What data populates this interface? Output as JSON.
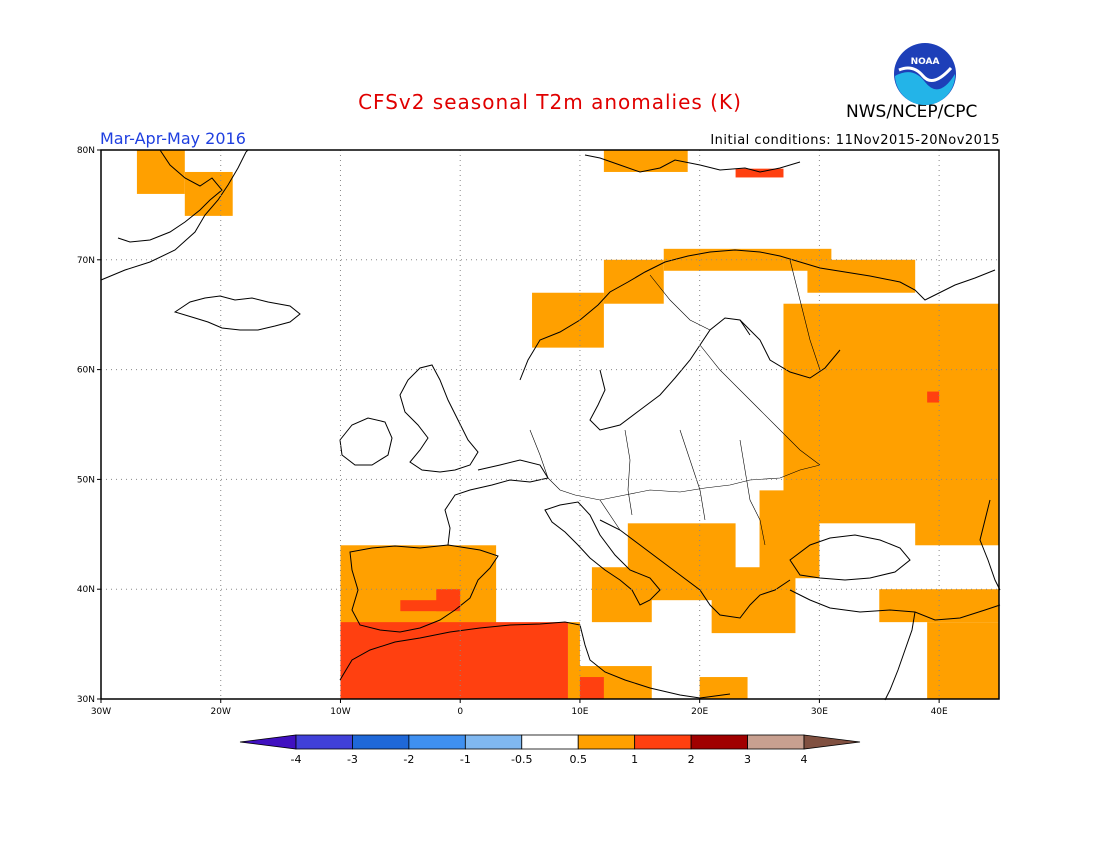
{
  "header": {
    "title": "CFSv2 seasonal T2m anomalies (K)",
    "agency": "NWS/NCEP/CPC",
    "period": "Mar-Apr-May 2016",
    "initial_conditions": "Initial conditions: 11Nov2015-20Nov2015",
    "logo_text": "NOAA"
  },
  "map": {
    "lon_range": [
      -30,
      45
    ],
    "lat_range": [
      30,
      80
    ],
    "lon_ticks": [
      {
        "value": -30,
        "label": "30W"
      },
      {
        "value": -20,
        "label": "20W"
      },
      {
        "value": -10,
        "label": "10W"
      },
      {
        "value": 0,
        "label": "0"
      },
      {
        "value": 10,
        "label": "10E"
      },
      {
        "value": 20,
        "label": "20E"
      },
      {
        "value": 30,
        "label": "30E"
      },
      {
        "value": 40,
        "label": "40E"
      }
    ],
    "lat_ticks": [
      {
        "value": 30,
        "label": "30N"
      },
      {
        "value": 40,
        "label": "40N"
      },
      {
        "value": 50,
        "label": "50N"
      },
      {
        "value": 60,
        "label": "60N"
      },
      {
        "value": 70,
        "label": "70N"
      },
      {
        "value": 80,
        "label": "80N"
      }
    ],
    "grid": true,
    "anomaly_regions": [
      {
        "category": "0.5-1",
        "lon": [
          -27,
          -23
        ],
        "lat": [
          76,
          80
        ]
      },
      {
        "category": "0.5-1",
        "lon": [
          -23,
          -19
        ],
        "lat": [
          74,
          78
        ]
      },
      {
        "category": "0.5-1",
        "lon": [
          12,
          19
        ],
        "lat": [
          78,
          80
        ]
      },
      {
        "category": "1-2",
        "lon": [
          23,
          27
        ],
        "lat": [
          77.5,
          78.3
        ]
      },
      {
        "category": "0.5-1",
        "lon": [
          6,
          12
        ],
        "lat": [
          62,
          67
        ]
      },
      {
        "category": "0.5-1",
        "lon": [
          12,
          17
        ],
        "lat": [
          66,
          70
        ]
      },
      {
        "category": "0.5-1",
        "lon": [
          17,
          31
        ],
        "lat": [
          69,
          71
        ]
      },
      {
        "category": "0.5-1",
        "lon": [
          29,
          38
        ],
        "lat": [
          67,
          70
        ]
      },
      {
        "category": "0.5-1",
        "lon": [
          27,
          45
        ],
        "lat": [
          46,
          66
        ]
      },
      {
        "category": "0.5-1",
        "lon": [
          38,
          45
        ],
        "lat": [
          44,
          50
        ]
      },
      {
        "category": "0.5-1",
        "lon": [
          25,
          30
        ],
        "lat": [
          41,
          49
        ]
      },
      {
        "category": "0.5-1",
        "lon": [
          14,
          23
        ],
        "lat": [
          39,
          46
        ]
      },
      {
        "category": "0.5-1",
        "lon": [
          21,
          28
        ],
        "lat": [
          36,
          42
        ]
      },
      {
        "category": "0.5-1",
        "lon": [
          -10,
          3
        ],
        "lat": [
          36,
          44
        ]
      },
      {
        "category": "0.5-1",
        "lon": [
          11,
          16
        ],
        "lat": [
          37,
          42
        ]
      },
      {
        "category": "0.5-1",
        "lon": [
          9,
          10
        ],
        "lat": [
          31,
          37
        ]
      },
      {
        "category": "0.5-1",
        "lon": [
          9,
          16
        ],
        "lat": [
          30,
          33
        ]
      },
      {
        "category": "0.5-1",
        "lon": [
          20,
          24
        ],
        "lat": [
          30,
          32
        ]
      },
      {
        "category": "0.5-1",
        "lon": [
          35,
          45
        ],
        "lat": [
          37,
          40
        ]
      },
      {
        "category": "0.5-1",
        "lon": [
          39,
          45
        ],
        "lat": [
          30,
          37
        ]
      },
      {
        "category": "1-2",
        "lon": [
          -10,
          9
        ],
        "lat": [
          30,
          37
        ]
      },
      {
        "category": "1-2",
        "lon": [
          -5,
          -1
        ],
        "lat": [
          38,
          39
        ]
      },
      {
        "category": "1-2",
        "lon": [
          -2,
          0
        ],
        "lat": [
          38,
          40
        ]
      },
      {
        "category": "1-2",
        "lon": [
          10,
          12
        ],
        "lat": [
          30,
          32
        ]
      },
      {
        "category": "1-2",
        "lon": [
          39,
          40
        ],
        "lat": [
          57,
          58
        ]
      }
    ]
  },
  "colorbar": {
    "bins": [
      {
        "color": "#4010c0"
      },
      {
        "color": "#4040d8"
      },
      {
        "color": "#1f68d8"
      },
      {
        "color": "#3f90f0"
      },
      {
        "color": "#80b8f0"
      },
      {
        "color": "#ffffff"
      },
      {
        "color": "#ffa000"
      },
      {
        "color": "#ff4010"
      },
      {
        "color": "#a00000"
      },
      {
        "color": "#c8a090"
      },
      {
        "color": "#805040"
      }
    ],
    "labels": [
      "-4",
      "-3",
      "-2",
      "-1",
      "-0.5",
      "0.5",
      "1",
      "2",
      "3",
      "4"
    ]
  },
  "colors": {
    "0.5-1": "#ffa000",
    "1-2": "#ff4010",
    "coast": "#000000",
    "grid": "#888888"
  }
}
